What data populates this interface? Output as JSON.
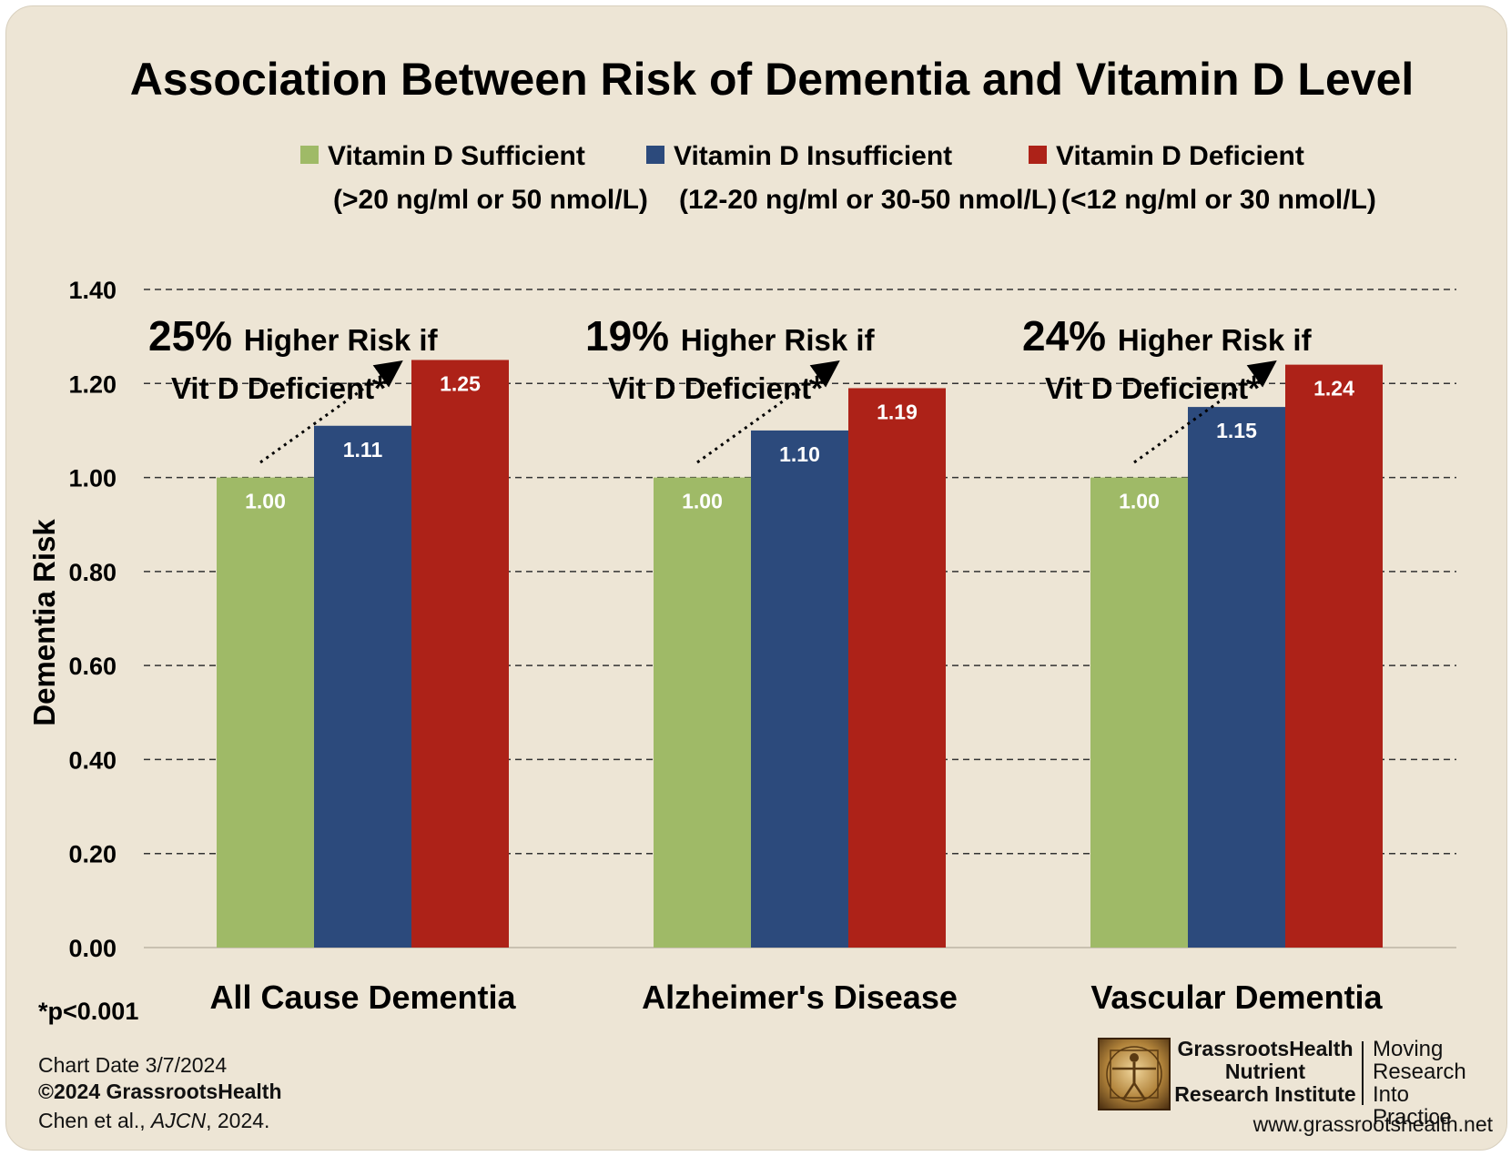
{
  "chart_data": {
    "type": "bar",
    "title": "Association Between Risk of Dementia and Vitamin D Level",
    "ylabel": "Dementia Risk",
    "xlabel": "",
    "ylim": [
      0,
      1.4
    ],
    "yticks": [
      "0.00",
      "0.20",
      "0.40",
      "0.60",
      "0.80",
      "1.00",
      "1.20",
      "1.40"
    ],
    "grid": true,
    "legend_position": "top",
    "categories": [
      "All Cause Dementia",
      "Alzheimer's Disease",
      "Vascular Dementia"
    ],
    "series": [
      {
        "name": "Vitamin D Sufficient",
        "subtitle": "(>20 ng/ml or 50 nmol/L)",
        "color": "#9fba67",
        "values": [
          1.0,
          1.0,
          1.0
        ],
        "labels": [
          "1.00",
          "1.00",
          "1.00"
        ]
      },
      {
        "name": "Vitamin D Insufficient",
        "subtitle": "(12-20 ng/ml or 30-50 nmol/L)",
        "color": "#2c4a7c",
        "values": [
          1.11,
          1.1,
          1.15
        ],
        "labels": [
          "1.11",
          "1.10",
          "1.15"
        ]
      },
      {
        "name": "Vitamin D Deficient",
        "subtitle": "(<12 ng/ml or 30 nmol/L)",
        "color": "#ad2218",
        "values": [
          1.25,
          1.19,
          1.24
        ],
        "labels": [
          "1.25",
          "1.19",
          "1.24"
        ]
      }
    ],
    "annotations": [
      {
        "pct": "25%",
        "line1": "Higher Risk if",
        "line2": "Vit D Deficient*"
      },
      {
        "pct": "19%",
        "line1": "Higher Risk if",
        "line2": "Vit D Deficient*"
      },
      {
        "pct": "24%",
        "line1": "Higher Risk if",
        "line2": "Vit D Deficient*"
      }
    ]
  },
  "footnote": "*p<0.001",
  "footer": {
    "chart_date": "Chart Date 3/7/2024",
    "copyright": "©2024 GrassrootsHealth",
    "citation_authors": "Chen et al., ",
    "citation_journal": "AJCN",
    "citation_year": ", 2024."
  },
  "logo": {
    "line1": "GrassrootsHealth",
    "line2": "Nutrient",
    "line3": "Research Institute",
    "tag1": "Moving",
    "tag2": "Research",
    "tag3": "Into Practice"
  },
  "url": "www.grassrootshealth.net"
}
